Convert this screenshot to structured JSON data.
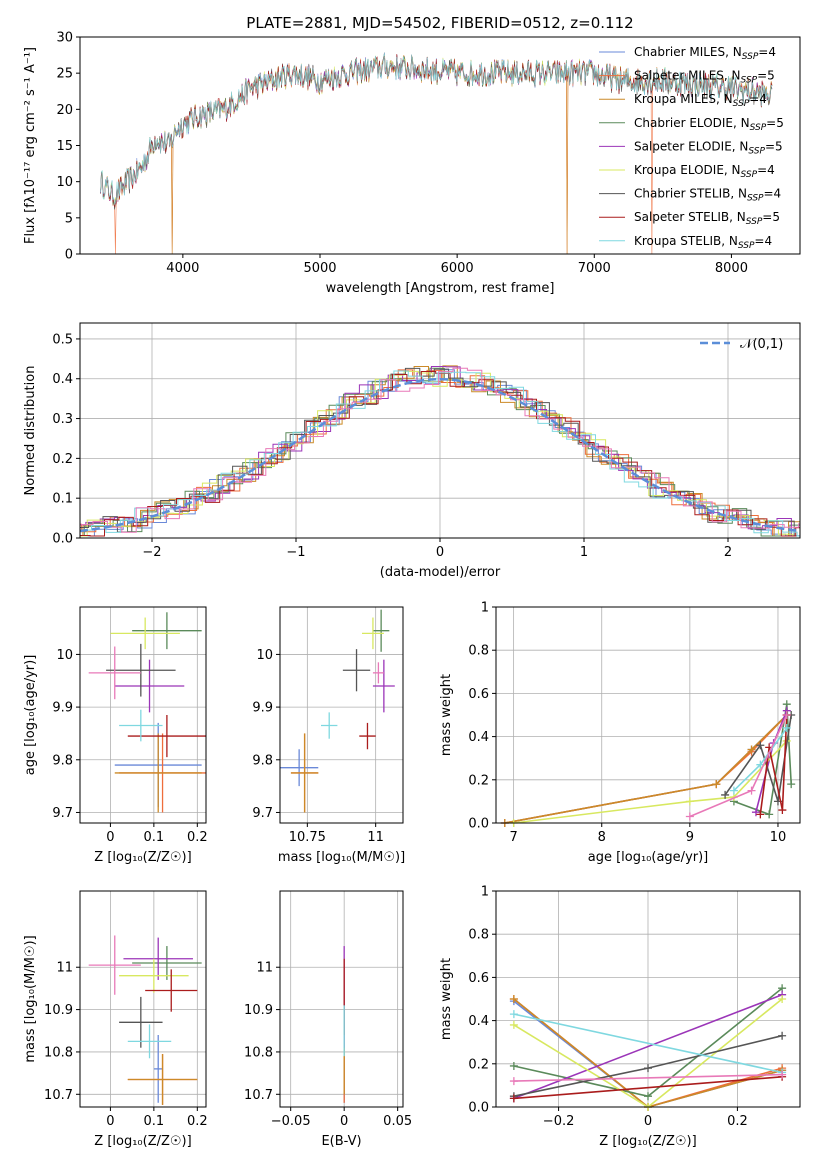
{
  "chart_data": [
    {
      "id": "spectrum",
      "type": "line",
      "title": "PLATE=2881, MJD=54502, FIBERID=0512, z=0.112",
      "xlabel": "wavelength [Angstrom, rest frame]",
      "ylabel": "Flux [fλ10⁻¹⁷ erg cm⁻² s⁻¹ A⁻¹]",
      "xlim": [
        3250,
        8500
      ],
      "ylim": [
        0,
        30
      ],
      "xticks": [
        4000,
        5000,
        6000,
        7000,
        8000
      ],
      "yticks": [
        0,
        5,
        10,
        15,
        20,
        25,
        30
      ],
      "legend_position": "upper-right",
      "spectrum_shape": {
        "x": [
          3400,
          3500,
          3700,
          3800,
          3900,
          3950,
          4000,
          4100,
          4300,
          4500,
          4800,
          5000,
          5200,
          5500,
          6000,
          6500,
          7000,
          7200,
          7500,
          8000,
          8300
        ],
        "y": [
          10,
          8,
          12,
          16,
          15,
          17,
          18,
          19,
          20,
          23,
          25,
          24,
          25,
          26,
          25,
          25,
          25,
          24,
          24,
          23,
          22
        ]
      },
      "series": [
        {
          "name": "Chabrier MILES, N_SSP=4",
          "color": "#6a89d8",
          "dropouts": []
        },
        {
          "name": "Salpeter MILES, N_SSP=5",
          "color": "#ee6e3c",
          "dropouts": [
            3510,
            3920,
            6800,
            7420
          ]
        },
        {
          "name": "Kroupa MILES, N_SSP=4",
          "color": "#cc8a28",
          "dropouts": [
            3920,
            6800
          ]
        },
        {
          "name": "Chabrier ELODIE, N_SSP=5",
          "color": "#5a8a5a",
          "dropouts": []
        },
        {
          "name": "Salpeter ELODIE, N_SSP=5",
          "color": "#9b35b8",
          "dropouts": []
        },
        {
          "name": "Kroupa ELODIE, N_SSP=4",
          "color": "#d8e860",
          "dropouts": []
        },
        {
          "name": "Chabrier STELIB, N_SSP=4",
          "color": "#555555",
          "dropouts": []
        },
        {
          "name": "Salpeter STELIB, N_SSP=5",
          "color": "#aa1c1c",
          "dropouts": []
        },
        {
          "name": "Kroupa STELIB, N_SSP=4",
          "color": "#7fd8e0",
          "dropouts": []
        }
      ]
    },
    {
      "id": "residuals",
      "type": "line",
      "xlabel": "(data-model)/error",
      "ylabel": "Normed distribution",
      "xlim": [
        -2.5,
        2.5
      ],
      "ylim": [
        0,
        0.54
      ],
      "xticks": [
        -2,
        -1,
        0,
        1,
        2
      ],
      "yticks": [
        0.0,
        0.1,
        0.2,
        0.3,
        0.4,
        0.5
      ],
      "grid": true,
      "legend_position": "upper-right",
      "gaussian_label": "𝒩(0,1)",
      "gaussian_color": "#5b8ed8"
    },
    {
      "id": "age_vs_Z",
      "type": "scatter",
      "xlabel": "Z [log₁₀(Z/Z☉)]",
      "ylabel": "age  [log₁₀(age/yr)]",
      "xlim": [
        -0.07,
        0.22
      ],
      "ylim": [
        9.68,
        10.09
      ],
      "xticks": [
        0.0,
        0.1,
        0.2
      ],
      "yticks": [
        9.7,
        9.8,
        9.9,
        10.0
      ],
      "grid": true,
      "points": [
        {
          "x": 0.11,
          "y": 9.79,
          "xerr": 0.1,
          "yerr": 0.08,
          "color": "#6a89d8"
        },
        {
          "x": 0.12,
          "y": 9.775,
          "xerr": 0.1,
          "yerr": 0.075,
          "color": "#ee6e3c"
        },
        {
          "x": 0.11,
          "y": 9.775,
          "xerr": 0.1,
          "yerr": 0.075,
          "color": "#cc8a28"
        },
        {
          "x": 0.13,
          "y": 10.045,
          "xerr": 0.08,
          "yerr": 0.035,
          "color": "#5a8a5a"
        },
        {
          "x": 0.09,
          "y": 9.94,
          "xerr": 0.08,
          "yerr": 0.05,
          "color": "#9b35b8"
        },
        {
          "x": 0.08,
          "y": 10.04,
          "xerr": 0.08,
          "yerr": 0.03,
          "color": "#d8e860"
        },
        {
          "x": 0.07,
          "y": 9.97,
          "xerr": 0.08,
          "yerr": 0.05,
          "color": "#555555"
        },
        {
          "x": 0.13,
          "y": 9.845,
          "xerr": 0.09,
          "yerr": 0.04,
          "color": "#aa1c1c"
        },
        {
          "x": 0.07,
          "y": 9.865,
          "xerr": 0.05,
          "yerr": 0.03,
          "color": "#7fd8e0"
        },
        {
          "x": 0.01,
          "y": 9.965,
          "xerr": 0.06,
          "yerr": 0.05,
          "color": "#e879b8"
        }
      ]
    },
    {
      "id": "age_vs_mass",
      "type": "scatter",
      "xlabel": "mass [log₁₀(M/M☉)]",
      "xlim": [
        10.65,
        11.1
      ],
      "ylim": [
        9.68,
        10.09
      ],
      "xticks": [
        10.75,
        11.0
      ],
      "yticks": [
        9.7,
        9.8,
        9.9,
        10.0
      ],
      "grid": true,
      "points": [
        {
          "x": 10.72,
          "y": 9.785,
          "xerr": 0.07,
          "yerr": 0.035,
          "color": "#6a89d8"
        },
        {
          "x": 10.74,
          "y": 9.775,
          "xerr": 0.05,
          "yerr": 0.075,
          "color": "#ee6e3c"
        },
        {
          "x": 10.74,
          "y": 9.775,
          "xerr": 0.05,
          "yerr": 0.075,
          "color": "#cc8a28"
        },
        {
          "x": 11.02,
          "y": 10.045,
          "xerr": 0.03,
          "yerr": 0.04,
          "color": "#5a8a5a"
        },
        {
          "x": 11.03,
          "y": 9.94,
          "xerr": 0.04,
          "yerr": 0.05,
          "color": "#9b35b8"
        },
        {
          "x": 10.99,
          "y": 10.04,
          "xerr": 0.04,
          "yerr": 0.03,
          "color": "#d8e860"
        },
        {
          "x": 10.93,
          "y": 9.97,
          "xerr": 0.05,
          "yerr": 0.04,
          "color": "#555555"
        },
        {
          "x": 10.97,
          "y": 9.845,
          "xerr": 0.03,
          "yerr": 0.025,
          "color": "#aa1c1c"
        },
        {
          "x": 10.83,
          "y": 9.865,
          "xerr": 0.03,
          "yerr": 0.025,
          "color": "#7fd8e0"
        },
        {
          "x": 11.01,
          "y": 9.965,
          "xerr": 0.02,
          "yerr": 0.02,
          "color": "#e879b8"
        }
      ]
    },
    {
      "id": "weight_vs_age",
      "type": "line",
      "xlabel": "age  [log₁₀(age/yr)]",
      "ylabel": "mass weight",
      "xlim": [
        6.8,
        10.25
      ],
      "ylim": [
        0,
        1.0
      ],
      "xticks": [
        7,
        8,
        9,
        10
      ],
      "yticks": [
        0.0,
        0.2,
        0.4,
        0.6,
        0.8,
        1.0
      ],
      "grid": true,
      "series": [
        {
          "color": "#6a89d8",
          "x": [
            6.9,
            9.3,
            9.7,
            10.1
          ],
          "y": [
            0.0,
            0.18,
            0.34,
            0.5
          ]
        },
        {
          "color": "#ee6e3c",
          "x": [
            6.9,
            9.3,
            9.7,
            10.1
          ],
          "y": [
            0.0,
            0.18,
            0.33,
            0.5
          ]
        },
        {
          "color": "#cc8a28",
          "x": [
            6.9,
            9.3,
            9.7,
            10.1
          ],
          "y": [
            0.0,
            0.18,
            0.34,
            0.5
          ]
        },
        {
          "color": "#5a8a5a",
          "x": [
            9.5,
            9.9,
            10.1,
            10.15
          ],
          "y": [
            0.1,
            0.04,
            0.55,
            0.18
          ]
        },
        {
          "color": "#9b35b8",
          "x": [
            9.75,
            9.95,
            10.1
          ],
          "y": [
            0.05,
            0.37,
            0.52
          ]
        },
        {
          "color": "#d8e860",
          "x": [
            7.0,
            9.0,
            9.5,
            10.1
          ],
          "y": [
            0.0,
            0.1,
            0.12,
            0.38
          ]
        },
        {
          "color": "#555555",
          "x": [
            9.4,
            9.8,
            10.0,
            10.15
          ],
          "y": [
            0.13,
            0.36,
            0.1,
            0.5
          ]
        },
        {
          "color": "#aa1c1c",
          "x": [
            9.8,
            9.9,
            10.05,
            10.1
          ],
          "y": [
            0.04,
            0.35,
            0.06,
            0.5
          ]
        },
        {
          "color": "#7fd8e0",
          "x": [
            9.5,
            9.8,
            10.1
          ],
          "y": [
            0.15,
            0.27,
            0.44
          ]
        },
        {
          "color": "#e879b8",
          "x": [
            9.0,
            9.7,
            10.1
          ],
          "y": [
            0.03,
            0.15,
            0.5
          ]
        }
      ]
    },
    {
      "id": "mass_vs_Z",
      "type": "scatter",
      "xlabel": "Z [log₁₀(Z/Z☉)]",
      "ylabel": "mass [log₁₀(M/M☉)]",
      "xlim": [
        -0.07,
        0.22
      ],
      "ylim": [
        10.67,
        11.18
      ],
      "xticks": [
        0.0,
        0.1,
        0.2
      ],
      "yticks": [
        10.7,
        10.8,
        10.9,
        11.0
      ],
      "grid": true,
      "points": [
        {
          "x": 0.11,
          "y": 10.76,
          "xerr": 0.01,
          "yerr": 0.08,
          "color": "#6a89d8"
        },
        {
          "x": 0.12,
          "y": 10.735,
          "xerr": 0.08,
          "yerr": 0.06,
          "color": "#ee6e3c"
        },
        {
          "x": 0.12,
          "y": 10.735,
          "xerr": 0.08,
          "yerr": 0.06,
          "color": "#cc8a28"
        },
        {
          "x": 0.13,
          "y": 11.01,
          "xerr": 0.08,
          "yerr": 0.04,
          "color": "#5a8a5a"
        },
        {
          "x": 0.11,
          "y": 11.02,
          "xerr": 0.08,
          "yerr": 0.05,
          "color": "#9b35b8"
        },
        {
          "x": 0.1,
          "y": 10.98,
          "xerr": 0.08,
          "yerr": 0.04,
          "color": "#d8e860"
        },
        {
          "x": 0.07,
          "y": 10.87,
          "xerr": 0.05,
          "yerr": 0.06,
          "color": "#555555"
        },
        {
          "x": 0.14,
          "y": 10.945,
          "xerr": 0.06,
          "yerr": 0.05,
          "color": "#aa1c1c"
        },
        {
          "x": 0.09,
          "y": 10.825,
          "xerr": 0.05,
          "yerr": 0.04,
          "color": "#7fd8e0"
        },
        {
          "x": 0.01,
          "y": 11.005,
          "xerr": 0.06,
          "yerr": 0.07,
          "color": "#e879b8"
        }
      ]
    },
    {
      "id": "mass_vs_EBV",
      "type": "scatter",
      "xlabel": "E(B-V)",
      "xlim": [
        -0.06,
        0.055
      ],
      "ylim": [
        10.67,
        11.18
      ],
      "xticks": [
        -0.05,
        0.0,
        0.05
      ],
      "yticks": [
        10.7,
        10.8,
        10.9,
        11.0
      ],
      "grid": true,
      "points": [
        {
          "x": 0.0,
          "y": 10.76,
          "yerr": 0.08,
          "color": "#6a89d8"
        },
        {
          "x": 0.0,
          "y": 10.76,
          "yerr": 0.08,
          "color": "#ee6e3c"
        },
        {
          "x": 0.0,
          "y": 10.76,
          "yerr": 0.06,
          "color": "#cc8a28"
        },
        {
          "x": 0.0,
          "y": 10.93,
          "yerr": 0.12,
          "color": "#9b35b8"
        },
        {
          "x": 0.0,
          "y": 10.93,
          "yerr": 0.09,
          "color": "#aa1c1c"
        },
        {
          "x": 0.0,
          "y": 10.85,
          "yerr": 0.06,
          "color": "#7fd8e0"
        }
      ]
    },
    {
      "id": "weight_vs_Z",
      "type": "line",
      "xlabel": "Z [log₁₀(Z/Z☉)]",
      "ylabel": "mass weight",
      "xlim": [
        -0.34,
        0.34
      ],
      "ylim": [
        0,
        1.0
      ],
      "xticks": [
        -0.2,
        0.0,
        0.2
      ],
      "yticks": [
        0.0,
        0.2,
        0.4,
        0.6,
        0.8,
        1.0
      ],
      "grid": true,
      "series": [
        {
          "color": "#6a89d8",
          "x": [
            -0.3,
            0.0,
            0.3
          ],
          "y": [
            0.49,
            0.0,
            0.17
          ]
        },
        {
          "color": "#ee6e3c",
          "x": [
            -0.3,
            0.0,
            0.3
          ],
          "y": [
            0.5,
            0.0,
            0.18
          ]
        },
        {
          "color": "#cc8a28",
          "x": [
            -0.3,
            0.0,
            0.3
          ],
          "y": [
            0.5,
            0.0,
            0.17
          ]
        },
        {
          "color": "#5a8a5a",
          "x": [
            -0.3,
            0.0,
            0.3
          ],
          "y": [
            0.19,
            0.05,
            0.55
          ]
        },
        {
          "color": "#9b35b8",
          "x": [
            -0.3,
            0.3
          ],
          "y": [
            0.04,
            0.52
          ]
        },
        {
          "color": "#d8e860",
          "x": [
            -0.3,
            0.0,
            0.3
          ],
          "y": [
            0.38,
            0.0,
            0.5
          ]
        },
        {
          "color": "#555555",
          "x": [
            -0.3,
            0.0,
            0.3
          ],
          "y": [
            0.05,
            0.18,
            0.33
          ]
        },
        {
          "color": "#aa1c1c",
          "x": [
            -0.3,
            0.3
          ],
          "y": [
            0.04,
            0.14
          ]
        },
        {
          "color": "#7fd8e0",
          "x": [
            -0.3,
            0.3
          ],
          "y": [
            0.43,
            0.16
          ]
        },
        {
          "color": "#e879b8",
          "x": [
            -0.3,
            0.3
          ],
          "y": [
            0.12,
            0.15
          ]
        }
      ]
    }
  ]
}
